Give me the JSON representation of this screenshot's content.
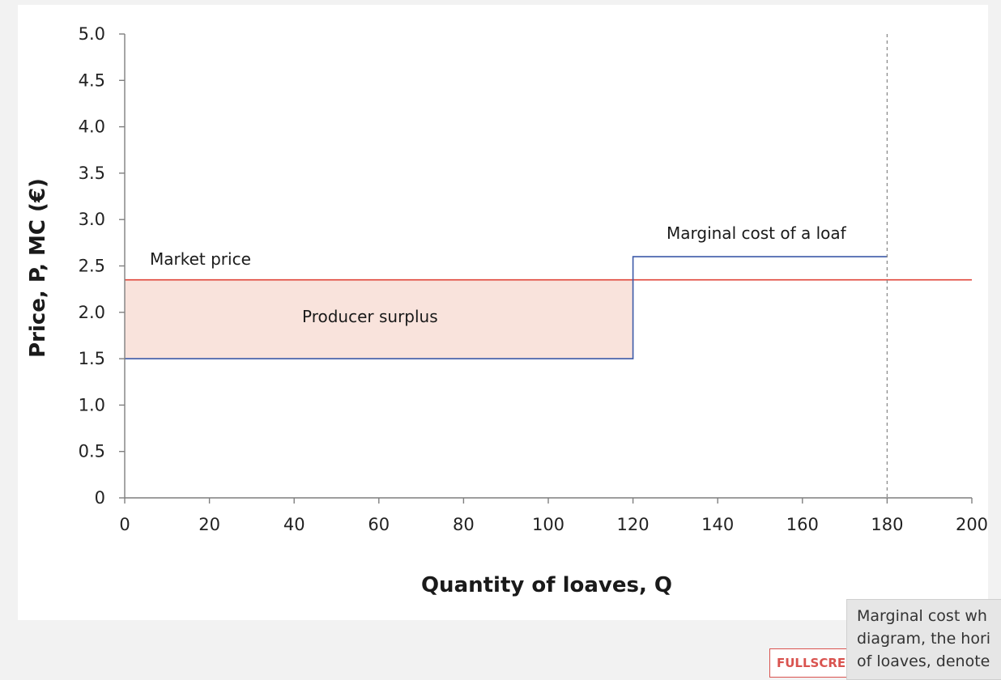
{
  "colors": {
    "market_price_line": "#e0453a",
    "marginal_cost_line": "#3d5aa8",
    "surplus_fill": "#f9e3dc",
    "axis": "#7f7f7f",
    "dashed_line": "#8c8c8c"
  },
  "chart_data": {
    "type": "line",
    "xlabel": "Quantity of loaves, Q",
    "ylabel": "Price, P, MC (€)",
    "xlim": [
      0,
      200
    ],
    "ylim": [
      0,
      5
    ],
    "x_ticks": [
      "0",
      "20",
      "40",
      "60",
      "80",
      "100",
      "120",
      "140",
      "160",
      "180",
      "200"
    ],
    "y_ticks": [
      "0",
      "0.5",
      "1.0",
      "1.5",
      "2.0",
      "2.5",
      "3.0",
      "3.5",
      "4.0",
      "4.5",
      "5.0"
    ],
    "grid": false,
    "series": [
      {
        "name": "Market price",
        "x": [
          0,
          200
        ],
        "y": [
          2.35,
          2.35
        ]
      },
      {
        "name": "Marginal cost of a loaf",
        "x": [
          0,
          120,
          120,
          180
        ],
        "y": [
          1.5,
          1.5,
          2.6,
          2.6
        ]
      }
    ],
    "shaded_region": {
      "label": "Producer surplus",
      "x": [
        0,
        120
      ],
      "y": [
        1.5,
        2.35
      ]
    },
    "vertical_reference_line": {
      "x": 180
    },
    "annotations": {
      "market_price": "Market price",
      "marginal_cost": "Marginal cost of a loaf",
      "producer_surplus": "Producer surplus"
    }
  },
  "overlay": {
    "fullscreen_label": "FULLSCRE",
    "tooltip_lines": [
      "Marginal cost wh",
      "diagram, the hori",
      "of loaves, denote"
    ]
  }
}
